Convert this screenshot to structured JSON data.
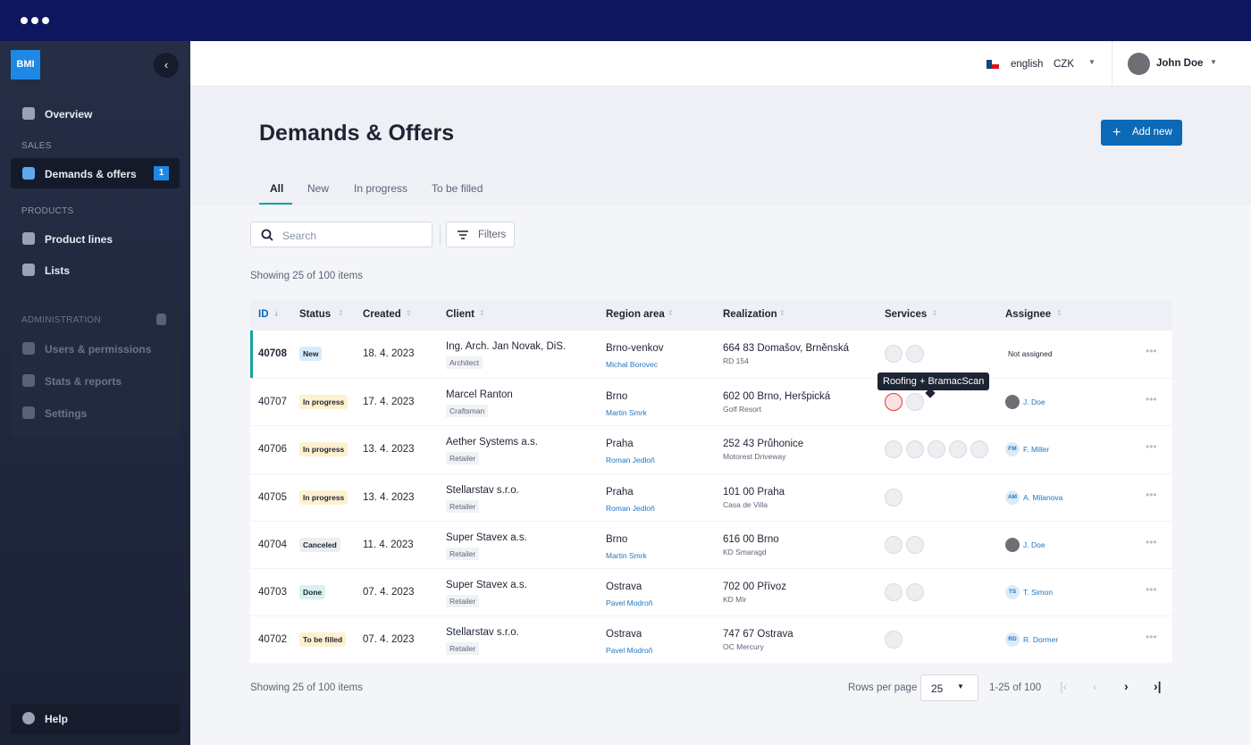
{
  "sidebar": {
    "logo": "BMI",
    "overview": "Overview",
    "sections": [
      {
        "title": "SALES",
        "items": [
          {
            "label": "Demands & offers",
            "badge": "1"
          }
        ]
      },
      {
        "title": "PRODUCTS",
        "items": [
          {
            "label": "Product lines"
          },
          {
            "label": "Lists"
          }
        ]
      },
      {
        "title": "ADMINISTRATION",
        "items": [
          {
            "label": "Users & permissions"
          },
          {
            "label": "Stats & reports"
          },
          {
            "label": "Settings"
          }
        ]
      }
    ],
    "help": "Help"
  },
  "topbar": {
    "language": "english",
    "currency": "CZK",
    "user": "John Doe"
  },
  "page": {
    "title": "Demands & Offers",
    "add_button": "Add new",
    "tabs": [
      "All",
      "New",
      "In progress",
      "To be filled"
    ],
    "search": "Search",
    "filters": "Filters",
    "showing": "Showing 25 of 100 items"
  },
  "table": {
    "columns": [
      "ID",
      "Status",
      "Created",
      "Client",
      "Region area",
      "Realization",
      "Services",
      "Assignee"
    ],
    "rows": [
      {
        "id": "40708",
        "status": "New",
        "created": "18. 4. 2023",
        "client": "Ing. Arch. Jan Novak, DiS.",
        "client_role": "Architect",
        "region": "Brno-venkov",
        "region_person": "Michal Borovec",
        "realization": "664 83 Domašov, Brněnská",
        "realization_note": "RD 154",
        "assignee": "Not assigned"
      },
      {
        "id": "40707",
        "status": "In progress",
        "created": "17. 4. 2023",
        "client": "Marcel Ranton",
        "client_role": "Craftsman",
        "region": "Brno",
        "region_person": "Martin Smrk",
        "realization": "602 00 Brno, Heršpická",
        "realization_note": "Golf Resort",
        "assignee": "J. Doe"
      },
      {
        "id": "40706",
        "status": "In progress",
        "created": "13. 4. 2023",
        "client": "Aether Systems a.s.",
        "client_role": "Retailer",
        "region": "Praha",
        "region_person": "Roman Jedloň",
        "realization": "252 43 Průhonice",
        "realization_note": "Motorest Driveway",
        "assignee": "F. Miller",
        "initials": "FM"
      },
      {
        "id": "40705",
        "status": "In progress",
        "created": "13. 4. 2023",
        "client": "Stellarstav s.r.o.",
        "client_role": "Retailer",
        "region": "Praha",
        "region_person": "Roman Jedloň",
        "realization": "101 00 Praha",
        "realization_note": "Casa de Villa",
        "assignee": "A. Milanova",
        "initials": "AM"
      },
      {
        "id": "40704",
        "status": "Canceled",
        "created": "11. 4. 2023",
        "client": "Super Stavex a.s.",
        "client_role": "Retailer",
        "region": "Brno",
        "region_person": "Martin Smrk",
        "realization": "616 00 Brno",
        "realization_note": "KD Smaragd",
        "assignee": "J. Doe"
      },
      {
        "id": "40703",
        "status": "Done",
        "created": "07. 4. 2023",
        "client": "Super Stavex a.s.",
        "client_role": "Retailer",
        "region": "Ostrava",
        "region_person": "Pavel Modroň",
        "realization": "702 00 Přívoz",
        "realization_note": "KD Mír",
        "assignee": "T. Simon",
        "initials": "TS"
      },
      {
        "id": "40702",
        "status": "To be filled",
        "created": "07. 4. 2023",
        "client": "Stellarstav s.r.o.",
        "client_role": "Retailer",
        "region": "Ostrava",
        "region_person": "Pavel Modroň",
        "realization": "747 67 Ostrava",
        "realization_note": "OC Mercury",
        "assignee": "R. Dormer",
        "initials": "RD"
      }
    ],
    "tooltip": "Roofing + BramacScan"
  },
  "footer": {
    "showing": "Showing 25 of 100 items",
    "rows_per_page": "Rows per page",
    "rows_value": "25",
    "range": "1-25 of 100"
  }
}
